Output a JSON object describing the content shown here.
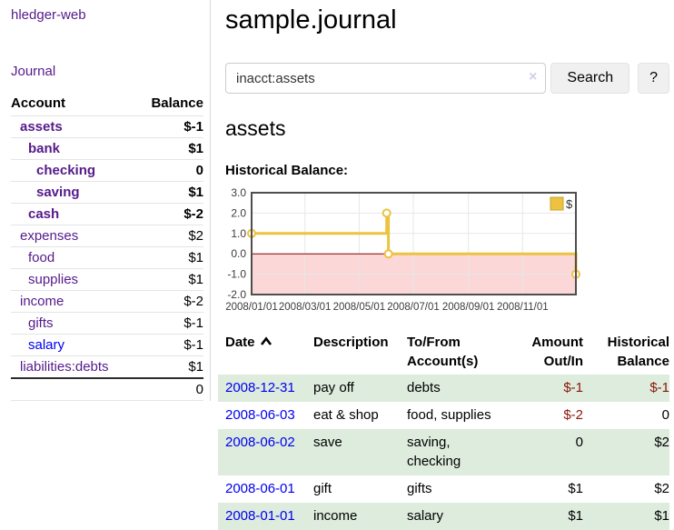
{
  "sidebar": {
    "app_title": "hledger-web",
    "nav": {
      "journal_label": "Journal"
    },
    "accounts_table": {
      "account_header": "Account",
      "balance_header": "Balance",
      "rows": [
        {
          "name": "assets",
          "balance": "$-1",
          "depth": 1,
          "in_account": true,
          "balance_color": "negative"
        },
        {
          "name": "bank",
          "balance": "$1",
          "depth": 2,
          "in_account": true,
          "balance_color": "normal"
        },
        {
          "name": "checking",
          "balance": "0",
          "depth": 3,
          "in_account": true,
          "balance_color": "normal"
        },
        {
          "name": "saving",
          "balance": "$1",
          "depth": 3,
          "in_account": true,
          "balance_color": "normal"
        },
        {
          "name": "cash",
          "balance": "$-2",
          "depth": 2,
          "in_account": true,
          "balance_color": "negative"
        },
        {
          "name": "expenses",
          "balance": "$2",
          "depth": 1,
          "in_account": false,
          "balance_color": "normal"
        },
        {
          "name": "food",
          "balance": "$1",
          "depth": 2,
          "in_account": false,
          "balance_color": "normal"
        },
        {
          "name": "supplies",
          "balance": "$1",
          "depth": 2,
          "in_account": false,
          "balance_color": "normal"
        },
        {
          "name": "income",
          "balance": "$-2",
          "depth": 1,
          "in_account": false,
          "balance_color": "negative-faded"
        },
        {
          "name": "gifts",
          "balance": "$-1",
          "depth": 2,
          "in_account": false,
          "balance_color": "negative-faded"
        },
        {
          "name": "salary",
          "balance": "$-1",
          "depth": 2,
          "in_account": false,
          "balance_color": "negative-faded",
          "link_style": "unvisited"
        },
        {
          "name": "liabilities:debts",
          "balance": "$1",
          "depth": 1,
          "in_account": false,
          "balance_color": "normal"
        }
      ],
      "total": "0"
    }
  },
  "header": {
    "title": "sample.journal"
  },
  "search": {
    "query": "inacct:assets",
    "clear_icon": "×",
    "button_label": "Search",
    "help_label": "?"
  },
  "account_page": {
    "heading": "assets",
    "chart_label": "Historical Balance:"
  },
  "chart_data": {
    "type": "line",
    "style": "step",
    "title": "Historical Balance",
    "legend": "$",
    "legend_position": "top-right",
    "grid": true,
    "xlim": [
      "2008-01-01",
      "2008-12-31"
    ],
    "ylim": [
      -2,
      3
    ],
    "y_ticks": [
      3.0,
      2.0,
      1.0,
      0.0,
      -1.0,
      -2.0
    ],
    "x_ticks": [
      {
        "date": "2008-01-01",
        "label": "2008/01/01"
      },
      {
        "date": "2008-03-01",
        "label": "2008/03/01"
      },
      {
        "date": "2008-05-01",
        "label": "2008/05/01"
      },
      {
        "date": "2008-07-01",
        "label": "2008/07/01"
      },
      {
        "date": "2008-09-01",
        "label": "2008/09/01"
      },
      {
        "date": "2008-11-01",
        "label": "2008/11/01"
      }
    ],
    "series": [
      {
        "name": "$",
        "color": "#edc240",
        "points": [
          [
            "2008-01-01",
            1
          ],
          [
            "2008-06-01",
            2
          ],
          [
            "2008-06-03",
            0
          ],
          [
            "2008-12-31",
            -1
          ]
        ]
      }
    ],
    "negative_region": {
      "below": 0,
      "fill": "#fbd7d7",
      "line": "#8b0000"
    }
  },
  "register": {
    "columns": {
      "date": "Date",
      "description": "Description",
      "accounts": "To/From Account(s)",
      "amount": "Amount Out/In",
      "balance": "Historical Balance"
    },
    "rows": [
      {
        "date": "2008-12-31",
        "description": "pay off",
        "accounts": [
          "debts"
        ],
        "amount": "$-1",
        "balance": "$-1"
      },
      {
        "date": "2008-06-03",
        "description": "eat & shop",
        "accounts": [
          "food, supplies"
        ],
        "amount": "$-2",
        "balance": "0"
      },
      {
        "date": "2008-06-02",
        "description": "save",
        "accounts": [
          "saving,",
          "checking"
        ],
        "amount": "0",
        "balance": "$2"
      },
      {
        "date": "2008-06-01",
        "description": "gift",
        "accounts": [
          "gifts"
        ],
        "amount": "$1",
        "balance": "$2"
      },
      {
        "date": "2008-01-01",
        "description": "income",
        "accounts": [
          "salary"
        ],
        "amount": "$1",
        "balance": "$1"
      }
    ]
  },
  "colors": {
    "link_visited": "#551a8b",
    "link_unvisited": "#0000ee",
    "negative": "#8b1509",
    "negative_faded": "#c17d7d",
    "row_green": "#ddecdd",
    "series_gold": "#edc240",
    "chart_negative_fill": "#fbd7d7",
    "chart_zero_line": "#8b0000"
  }
}
